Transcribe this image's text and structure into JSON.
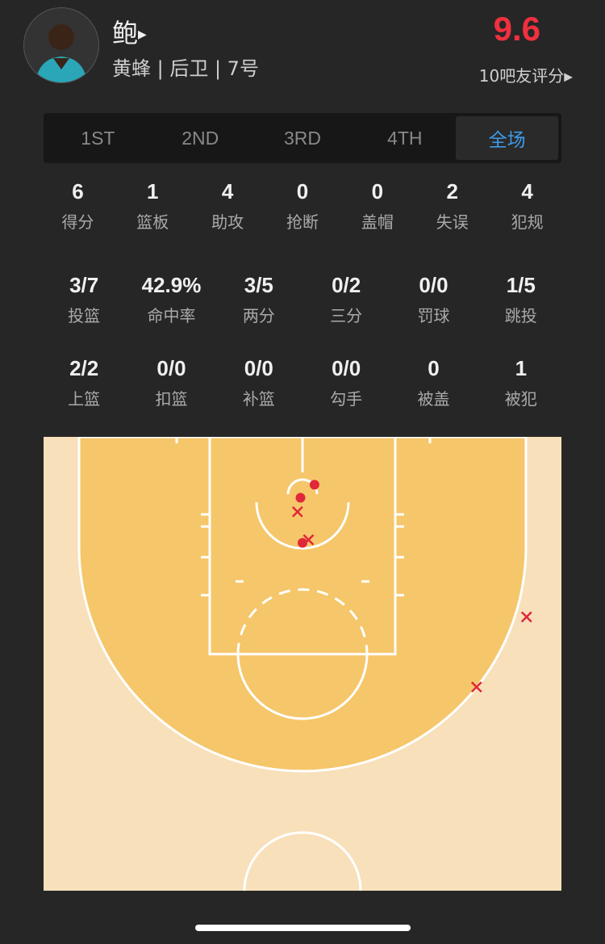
{
  "player": {
    "name": "鲍",
    "info": "黄蜂 | 后卫 | 7号",
    "rating": "9.6",
    "rating_votes": "10吧友评分"
  },
  "tabs": [
    {
      "label": "1ST"
    },
    {
      "label": "2ND"
    },
    {
      "label": "3RD"
    },
    {
      "label": "4TH"
    },
    {
      "label": "全场",
      "active": true
    }
  ],
  "stats_row1": [
    {
      "v": "6",
      "l": "得分"
    },
    {
      "v": "1",
      "l": "篮板"
    },
    {
      "v": "4",
      "l": "助攻"
    },
    {
      "v": "0",
      "l": "抢断"
    },
    {
      "v": "0",
      "l": "盖帽"
    },
    {
      "v": "2",
      "l": "失误"
    },
    {
      "v": "4",
      "l": "犯规"
    }
  ],
  "stats_row2": [
    {
      "v": "3/7",
      "l": "投篮"
    },
    {
      "v": "42.9%",
      "l": "命中率"
    },
    {
      "v": "3/5",
      "l": "两分"
    },
    {
      "v": "0/2",
      "l": "三分"
    },
    {
      "v": "0/0",
      "l": "罚球"
    },
    {
      "v": "1/5",
      "l": "跳投"
    }
  ],
  "stats_row3": [
    {
      "v": "2/2",
      "l": "上篮"
    },
    {
      "v": "0/0",
      "l": "扣篮"
    },
    {
      "v": "0/0",
      "l": "补篮"
    },
    {
      "v": "0/0",
      "l": "勾手"
    },
    {
      "v": "0",
      "l": "被盖"
    },
    {
      "v": "1",
      "l": "被犯"
    }
  ],
  "colors": {
    "accent": "#3d9be9",
    "rating": "#f0303f",
    "shot": "#e0283a",
    "paint": "#f5c66a",
    "court": "#f8e0bb"
  },
  "shot_chart": {
    "units": "feet from basket",
    "shots": [
      {
        "x": 1.2,
        "y": -0.3,
        "made": true
      },
      {
        "x": -0.2,
        "y": 1.0,
        "made": true
      },
      {
        "x": 0,
        "y": 5.5,
        "made": true
      },
      {
        "x": -0.5,
        "y": 2.4,
        "made": false
      },
      {
        "x": 0.6,
        "y": 5.2,
        "made": false
      },
      {
        "x": 22.4,
        "y": 12.9,
        "made": false
      },
      {
        "x": 17.4,
        "y": 19.9,
        "made": false
      }
    ]
  }
}
